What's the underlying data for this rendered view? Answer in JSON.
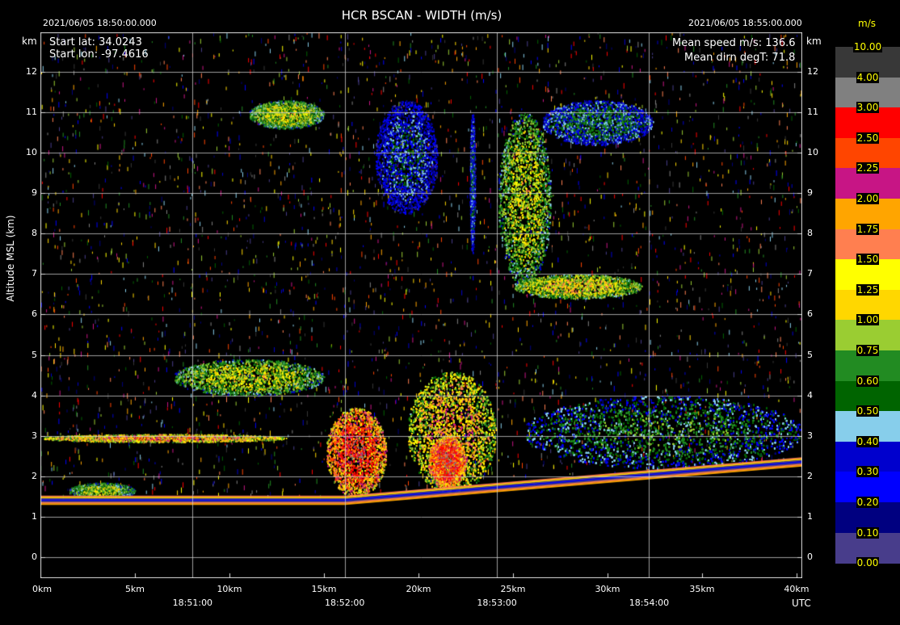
{
  "header": {
    "title": "HCR   BSCAN   -   WIDTH (m/s)",
    "start_time": "2021/06/05 18:50:00.000",
    "end_time": "2021/06/05 18:55:00.000",
    "start_lat": "Start lat: 34.0243",
    "start_lon": "Start lon: -97.4616",
    "mean_speed": "Mean speed m/s: 136.6",
    "mean_dirn": "Mean dirn degT: 71.8"
  },
  "axes": {
    "y_unit_left": "km",
    "y_unit_right": "km",
    "ylabel": "Altitude MSL (km)",
    "utc_label": "UTC"
  },
  "colorbar": {
    "units": "m/s",
    "bins": [
      {
        "label": "10.00",
        "color": "#383838"
      },
      {
        "label": "4.00",
        "color": "#808080"
      },
      {
        "label": "3.00",
        "color": "#ff0000"
      },
      {
        "label": "2.50",
        "color": "#ff4500"
      },
      {
        "label": "2.25",
        "color": "#c71585"
      },
      {
        "label": "2.00",
        "color": "#ffa500"
      },
      {
        "label": "1.75",
        "color": "#ff7f50"
      },
      {
        "label": "1.50",
        "color": "#ffff00"
      },
      {
        "label": "1.25",
        "color": "#ffd700"
      },
      {
        "label": "1.00",
        "color": "#9acd32"
      },
      {
        "label": "0.75",
        "color": "#228b22"
      },
      {
        "label": "0.60",
        "color": "#006400"
      },
      {
        "label": "0.50",
        "color": "#87ceeb"
      },
      {
        "label": "0.40",
        "color": "#0000cd"
      },
      {
        "label": "0.30",
        "color": "#0000ff"
      },
      {
        "label": "0.20",
        "color": "#000080"
      },
      {
        "label": "0.10",
        "color": "#483d8b"
      },
      {
        "label": "0.00",
        "color": ""
      }
    ]
  },
  "chart_data": {
    "type": "heatmap",
    "title": "HCR   BSCAN   -   WIDTH (m/s)",
    "ylabel": "Altitude MSL (km)",
    "ylim": [
      -0.5,
      13
    ],
    "xlim_km": [
      0,
      40.3
    ],
    "y_ticks": [
      0,
      1,
      2,
      3,
      4,
      5,
      6,
      7,
      8,
      9,
      10,
      11,
      12
    ],
    "x_dist_ticks": [
      {
        "km": 0,
        "label": "0km"
      },
      {
        "km": 5,
        "label": "5km"
      },
      {
        "km": 10,
        "label": "10km"
      },
      {
        "km": 15,
        "label": "15km"
      },
      {
        "km": 20,
        "label": "20km"
      },
      {
        "km": 25,
        "label": "25km"
      },
      {
        "km": 30,
        "label": "30km"
      },
      {
        "km": 35,
        "label": "35km"
      },
      {
        "km": 40,
        "label": "40km"
      }
    ],
    "x_time_ticks": [
      {
        "km": 8.05,
        "label": "18:51:00"
      },
      {
        "km": 16.1,
        "label": "18:52:00"
      },
      {
        "km": 24.15,
        "label": "18:53:00"
      },
      {
        "km": 32.2,
        "label": "18:54:00"
      }
    ],
    "grid": true,
    "surface": [
      [
        0,
        1.4
      ],
      [
        16.1,
        1.4
      ],
      [
        40.3,
        2.35
      ]
    ],
    "echoes": [
      {
        "name": "boundary layer layer",
        "x": [
          0,
          13
        ],
        "y": [
          2.85,
          3.05
        ],
        "width": 1.8
      },
      {
        "name": "low echo left",
        "x": [
          1.5,
          5
        ],
        "y": [
          1.45,
          1.85
        ],
        "width": 1.0
      },
      {
        "name": "convective cell 1",
        "x": [
          15.1,
          18.3
        ],
        "y": [
          1.5,
          3.7
        ],
        "width": 2.6
      },
      {
        "name": "convective cell 2",
        "x": [
          19.4,
          24.1
        ],
        "y": [
          1.6,
          4.6
        ],
        "width": 1.6
      },
      {
        "name": "cell 2 core",
        "x": [
          20.5,
          22.5
        ],
        "y": [
          1.7,
          3.0
        ],
        "width": 2.8
      },
      {
        "name": "mid-level fragments",
        "x": [
          7,
          15
        ],
        "y": [
          4.0,
          4.9
        ],
        "width": 1.1
      },
      {
        "name": "upper cloud A",
        "x": [
          17.7,
          21
        ],
        "y": [
          8.5,
          11.3
        ],
        "width": 0.45
      },
      {
        "name": "anvil",
        "x": [
          24.2,
          27
        ],
        "y": [
          6.7,
          11.0
        ],
        "width": 1.1
      },
      {
        "name": "anvil outflow",
        "x": [
          26.5,
          32.4
        ],
        "y": [
          10.2,
          11.3
        ],
        "width": 0.6
      },
      {
        "name": "upper streak",
        "x": [
          22.7,
          23
        ],
        "y": [
          7.5,
          11.0
        ],
        "width": 0.5
      },
      {
        "name": "upper wisps",
        "x": [
          11,
          15
        ],
        "y": [
          10.6,
          11.3
        ],
        "width": 1.1
      },
      {
        "name": "mid shelf",
        "x": [
          25,
          31.8
        ],
        "y": [
          6.4,
          7.0
        ],
        "width": 1.3
      },
      {
        "name": "right low clouds",
        "x": [
          25.5,
          40.3
        ],
        "y": [
          2.2,
          4.0
        ],
        "width": 0.7
      }
    ]
  }
}
